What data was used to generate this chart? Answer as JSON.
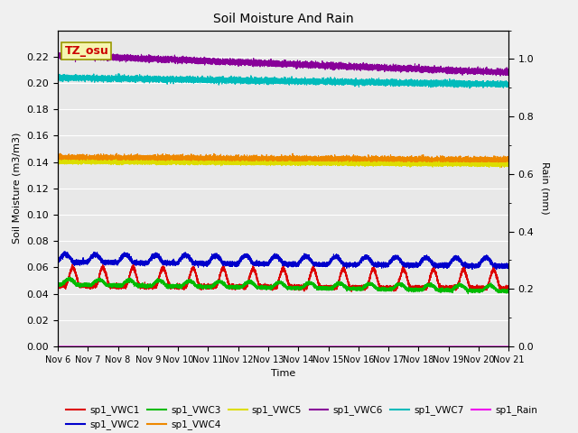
{
  "title": "Soil Moisture And Rain",
  "xlabel": "Time",
  "ylabel_left": "Soil Moisture (m3/m3)",
  "ylabel_right": "Rain (mm)",
  "ylim_left": [
    0,
    0.24
  ],
  "ylim_right": [
    0.0,
    1.1
  ],
  "yticks_left": [
    0.0,
    0.02,
    0.04,
    0.06,
    0.08,
    0.1,
    0.12,
    0.14,
    0.16,
    0.18,
    0.2,
    0.22
  ],
  "yticks_right": [
    0.0,
    0.2,
    0.4,
    0.6,
    0.8,
    1.0
  ],
  "background_color": "#e8e8e8",
  "figure_color": "#f0f0f0",
  "annotation_text": "TZ_osu",
  "annotation_bg": "#f5f5b0",
  "annotation_border": "#999900",
  "legend_entries": [
    {
      "label": "sp1_VWC1",
      "color": "#dd0000"
    },
    {
      "label": "sp1_VWC2",
      "color": "#0000cc"
    },
    {
      "label": "sp1_VWC3",
      "color": "#00bb00"
    },
    {
      "label": "sp1_VWC4",
      "color": "#ee8800"
    },
    {
      "label": "sp1_VWC5",
      "color": "#dddd00"
    },
    {
      "label": "sp1_VWC6",
      "color": "#880099"
    },
    {
      "label": "sp1_VWC7",
      "color": "#00bbbb"
    },
    {
      "label": "sp1_Rain",
      "color": "#ee00ee"
    }
  ],
  "xtick_labels": [
    "Nov 6",
    "Nov 7",
    "Nov 8",
    "Nov 9",
    "Nov 10",
    "Nov 11",
    "Nov 12",
    "Nov 13",
    "Nov 14",
    "Nov 15",
    "Nov 16",
    "Nov 17",
    "Nov 18",
    "Nov 19",
    "Nov 20",
    "Nov 21"
  ],
  "n_points": 15000
}
